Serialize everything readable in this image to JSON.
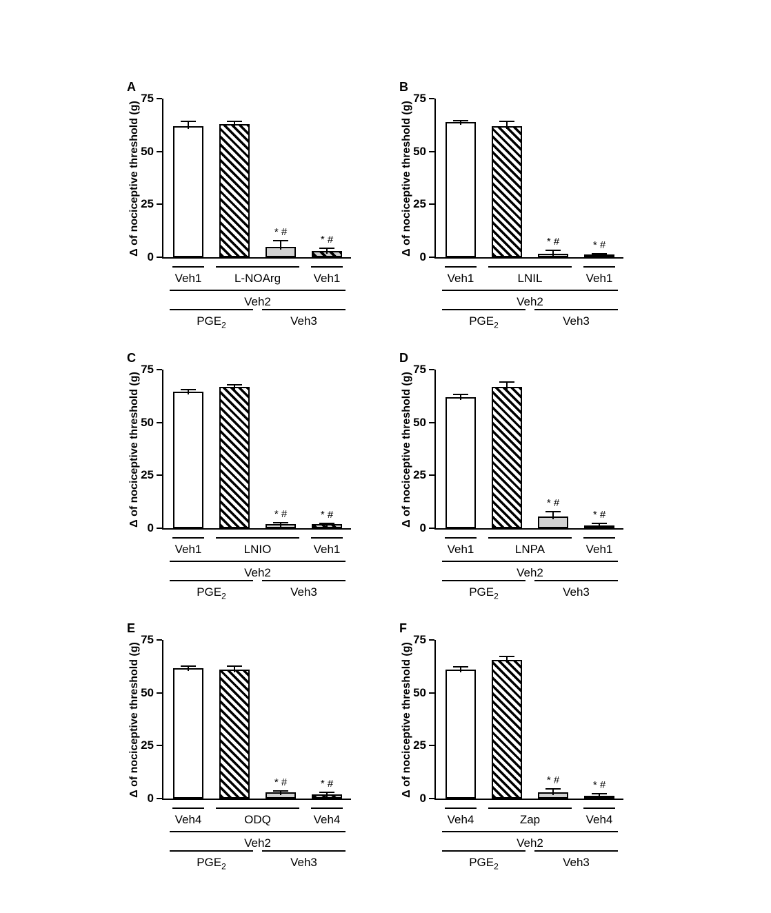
{
  "figure": {
    "background_color": "#ffffff",
    "ink_color": "#000000",
    "gray_fill_color": "#d2d2d2",
    "significance_symbols": "* #",
    "ylabel": "Δ of nociceptive threshold (g)"
  },
  "chart_data": [
    {
      "type": "bar",
      "panel": "A",
      "ylabel": "Δ of nociceptive threshold (g)",
      "ylim": [
        0,
        75
      ],
      "yticks": [
        0,
        25,
        50,
        75
      ],
      "categories": [
        "Veh1 + Veh2 + PGE2",
        "L-NOArg + Veh2 + PGE2",
        "L-NOArg + Veh2 + Veh3",
        "Veh1 + Veh2 + Veh3"
      ],
      "values": [
        62,
        63,
        5,
        3
      ],
      "errors": [
        2.5,
        1.5,
        3,
        1.5
      ],
      "bar_styles": [
        "open",
        "hatched",
        "gray",
        "gray-hatched"
      ],
      "annotations": [
        "",
        "",
        "* #",
        "* #"
      ],
      "group_rows": [
        {
          "segments": [
            {
              "text": "Veh1",
              "bars": [
                0,
                0
              ]
            },
            {
              "text": "L-NOArg",
              "bars": [
                1,
                2
              ]
            },
            {
              "text": "Veh1",
              "bars": [
                3,
                3
              ]
            }
          ]
        },
        {
          "segments": [
            {
              "text": "Veh2",
              "bars": [
                0,
                3
              ]
            }
          ]
        },
        {
          "segments": [
            {
              "text": "PGE",
              "sub": "2",
              "bars": [
                0,
                1
              ]
            },
            {
              "text": "Veh3",
              "bars": [
                2,
                3
              ]
            }
          ]
        }
      ]
    },
    {
      "type": "bar",
      "panel": "B",
      "ylabel": "Δ of nociceptive threshold (g)",
      "ylim": [
        0,
        75
      ],
      "yticks": [
        0,
        25,
        50,
        75
      ],
      "categories": [
        "Veh1 + Veh2 + PGE2",
        "LNIL + Veh2 + PGE2",
        "LNIL + Veh2 + Veh3",
        "Veh1 + Veh2 + Veh3"
      ],
      "values": [
        64,
        62,
        1.5,
        1
      ],
      "errors": [
        1,
        2.5,
        2,
        1
      ],
      "bar_styles": [
        "open",
        "hatched",
        "gray",
        "gray-hatched"
      ],
      "annotations": [
        "",
        "",
        "* #",
        "* #"
      ],
      "group_rows": [
        {
          "segments": [
            {
              "text": "Veh1",
              "bars": [
                0,
                0
              ]
            },
            {
              "text": "LNIL",
              "bars": [
                1,
                2
              ]
            },
            {
              "text": "Veh1",
              "bars": [
                3,
                3
              ]
            }
          ]
        },
        {
          "segments": [
            {
              "text": "Veh2",
              "bars": [
                0,
                3
              ]
            }
          ]
        },
        {
          "segments": [
            {
              "text": "PGE",
              "sub": "2",
              "bars": [
                0,
                1
              ]
            },
            {
              "text": "Veh3",
              "bars": [
                2,
                3
              ]
            }
          ]
        }
      ]
    },
    {
      "type": "bar",
      "panel": "C",
      "ylabel": "Δ of nociceptive threshold (g)",
      "ylim": [
        0,
        75
      ],
      "yticks": [
        0,
        25,
        50,
        75
      ],
      "categories": [
        "Veh1 + Veh2 + PGE2",
        "LNIO + Veh2 + PGE2",
        "LNIO + Veh2 + Veh3",
        "Veh1 + Veh2 + Veh3"
      ],
      "values": [
        64.5,
        67,
        2,
        2
      ],
      "errors": [
        1.5,
        1,
        1,
        0.7
      ],
      "bar_styles": [
        "open",
        "hatched",
        "gray",
        "gray-hatched"
      ],
      "annotations": [
        "",
        "",
        "* #",
        "* #"
      ],
      "group_rows": [
        {
          "segments": [
            {
              "text": "Veh1",
              "bars": [
                0,
                0
              ]
            },
            {
              "text": "LNIO",
              "bars": [
                1,
                2
              ]
            },
            {
              "text": "Veh1",
              "bars": [
                3,
                3
              ]
            }
          ]
        },
        {
          "segments": [
            {
              "text": "Veh2",
              "bars": [
                0,
                3
              ]
            }
          ]
        },
        {
          "segments": [
            {
              "text": "PGE",
              "sub": "2",
              "bars": [
                0,
                1
              ]
            },
            {
              "text": "Veh3",
              "bars": [
                2,
                3
              ]
            }
          ]
        }
      ]
    },
    {
      "type": "bar",
      "panel": "D",
      "ylabel": "Δ of nociceptive threshold (g)",
      "ylim": [
        0,
        75
      ],
      "yticks": [
        0,
        25,
        50,
        75
      ],
      "categories": [
        "Veh1 + Veh2 + PGE2",
        "LNPA + Veh2 + PGE2",
        "LNPA + Veh2 + Veh3",
        "Veh1 + Veh2 + Veh3"
      ],
      "values": [
        62,
        67,
        5.5,
        1
      ],
      "errors": [
        1.5,
        2.5,
        2.5,
        1.7
      ],
      "bar_styles": [
        "open",
        "hatched",
        "gray",
        "gray-hatched"
      ],
      "annotations": [
        "",
        "",
        "* #",
        "* #"
      ],
      "group_rows": [
        {
          "segments": [
            {
              "text": "Veh1",
              "bars": [
                0,
                0
              ]
            },
            {
              "text": "LNPA",
              "bars": [
                1,
                2
              ]
            },
            {
              "text": "Veh1",
              "bars": [
                3,
                3
              ]
            }
          ]
        },
        {
          "segments": [
            {
              "text": "Veh2",
              "bars": [
                0,
                3
              ]
            }
          ]
        },
        {
          "segments": [
            {
              "text": "PGE",
              "sub": "2",
              "bars": [
                0,
                1
              ]
            },
            {
              "text": "Veh3",
              "bars": [
                2,
                3
              ]
            }
          ]
        }
      ]
    },
    {
      "type": "bar",
      "panel": "E",
      "ylabel": "Δ of nociceptive threshold (g)",
      "ylim": [
        0,
        75
      ],
      "yticks": [
        0,
        25,
        50,
        75
      ],
      "categories": [
        "Veh4 + Veh2 + PGE2",
        "ODQ + Veh2 + PGE2",
        "ODQ + Veh2 + Veh3",
        "Veh4 + Veh2 + Veh3"
      ],
      "values": [
        61.5,
        61,
        3,
        1.8
      ],
      "errors": [
        1.5,
        2,
        1,
        1.5
      ],
      "bar_styles": [
        "open",
        "hatched",
        "gray",
        "gray-hatched"
      ],
      "annotations": [
        "",
        "",
        "* #",
        "* #"
      ],
      "group_rows": [
        {
          "segments": [
            {
              "text": "Veh4",
              "bars": [
                0,
                0
              ]
            },
            {
              "text": "ODQ",
              "bars": [
                1,
                2
              ]
            },
            {
              "text": "Veh4",
              "bars": [
                3,
                3
              ]
            }
          ]
        },
        {
          "segments": [
            {
              "text": "Veh2",
              "bars": [
                0,
                3
              ]
            }
          ]
        },
        {
          "segments": [
            {
              "text": "PGE",
              "sub": "2",
              "bars": [
                0,
                1
              ]
            },
            {
              "text": "Veh3",
              "bars": [
                2,
                3
              ]
            }
          ]
        }
      ]
    },
    {
      "type": "bar",
      "panel": "F",
      "ylabel": "Δ of nociceptive threshold (g)",
      "ylim": [
        0,
        75
      ],
      "yticks": [
        0,
        25,
        50,
        75
      ],
      "categories": [
        "Veh4 + Veh2 + PGE2",
        "Zap + Veh2 + PGE2",
        "Zap + Veh2 + Veh3",
        "Veh4 + Veh2 + Veh3"
      ],
      "values": [
        61,
        65.5,
        3,
        0.5
      ],
      "errors": [
        1.5,
        2,
        2,
        2
      ],
      "bar_styles": [
        "open",
        "hatched",
        "gray",
        "gray-hatched"
      ],
      "annotations": [
        "",
        "",
        "* #",
        "* #"
      ],
      "group_rows": [
        {
          "segments": [
            {
              "text": "Veh4",
              "bars": [
                0,
                0
              ]
            },
            {
              "text": "Zap",
              "bars": [
                1,
                2
              ]
            },
            {
              "text": "Veh4",
              "bars": [
                3,
                3
              ]
            }
          ]
        },
        {
          "segments": [
            {
              "text": "Veh2",
              "bars": [
                0,
                3
              ]
            }
          ]
        },
        {
          "segments": [
            {
              "text": "PGE",
              "sub": "2",
              "bars": [
                0,
                1
              ]
            },
            {
              "text": "Veh3",
              "bars": [
                2,
                3
              ]
            }
          ]
        }
      ]
    }
  ]
}
